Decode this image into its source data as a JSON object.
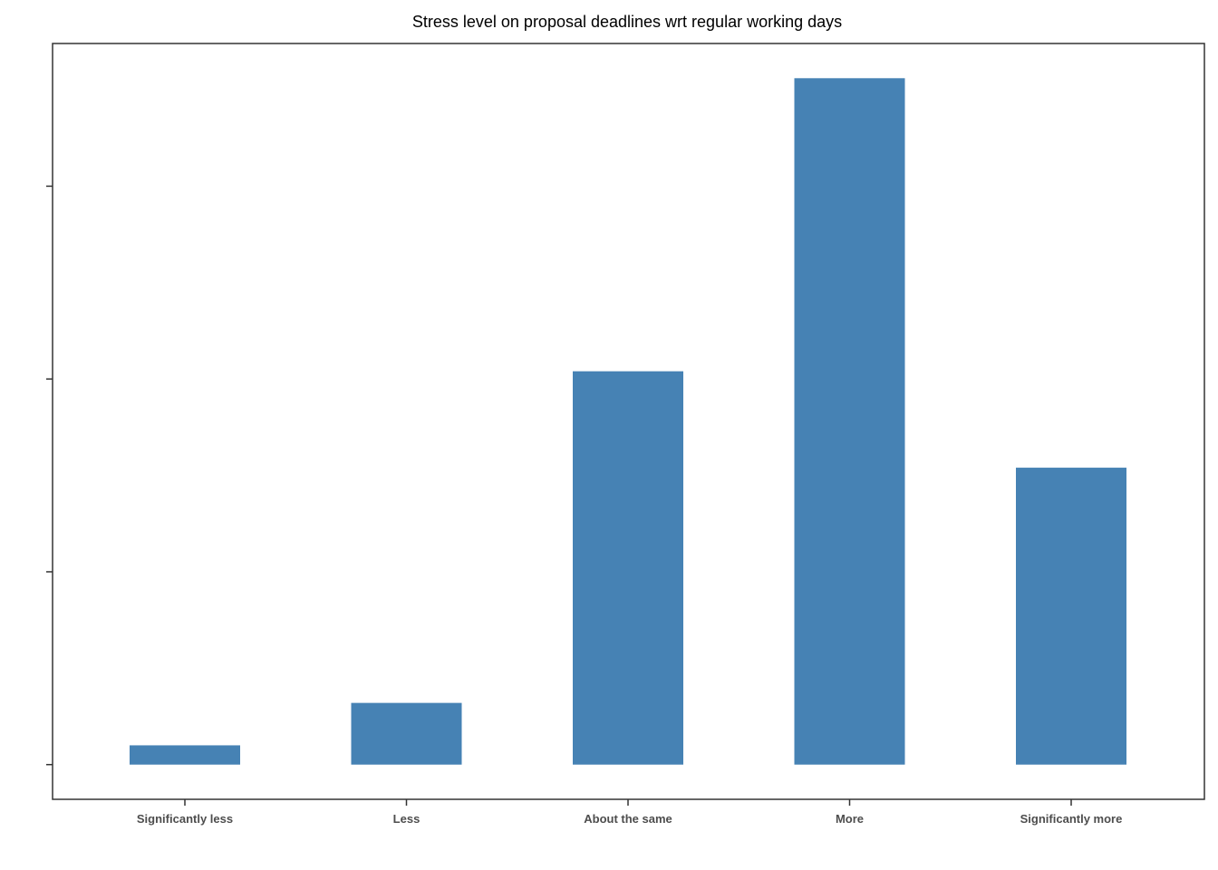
{
  "chart_data": {
    "type": "bar",
    "title": "Stress level on proposal deadlines wrt regular working days",
    "xlabel": "",
    "ylabel": "",
    "categories": [
      "Significantly less",
      "Less",
      "About the same",
      "More",
      "Significantly more"
    ],
    "values": [
      1,
      3.2,
      20.4,
      35.6,
      15.4
    ],
    "ylim": [
      -1.8,
      37.4
    ],
    "y_ticks": [
      0,
      10,
      20,
      30
    ],
    "y_tick_labels_shown": false,
    "grid": false,
    "legend": "none",
    "bar_color": "#4682b4",
    "axis_color": "#333333"
  }
}
